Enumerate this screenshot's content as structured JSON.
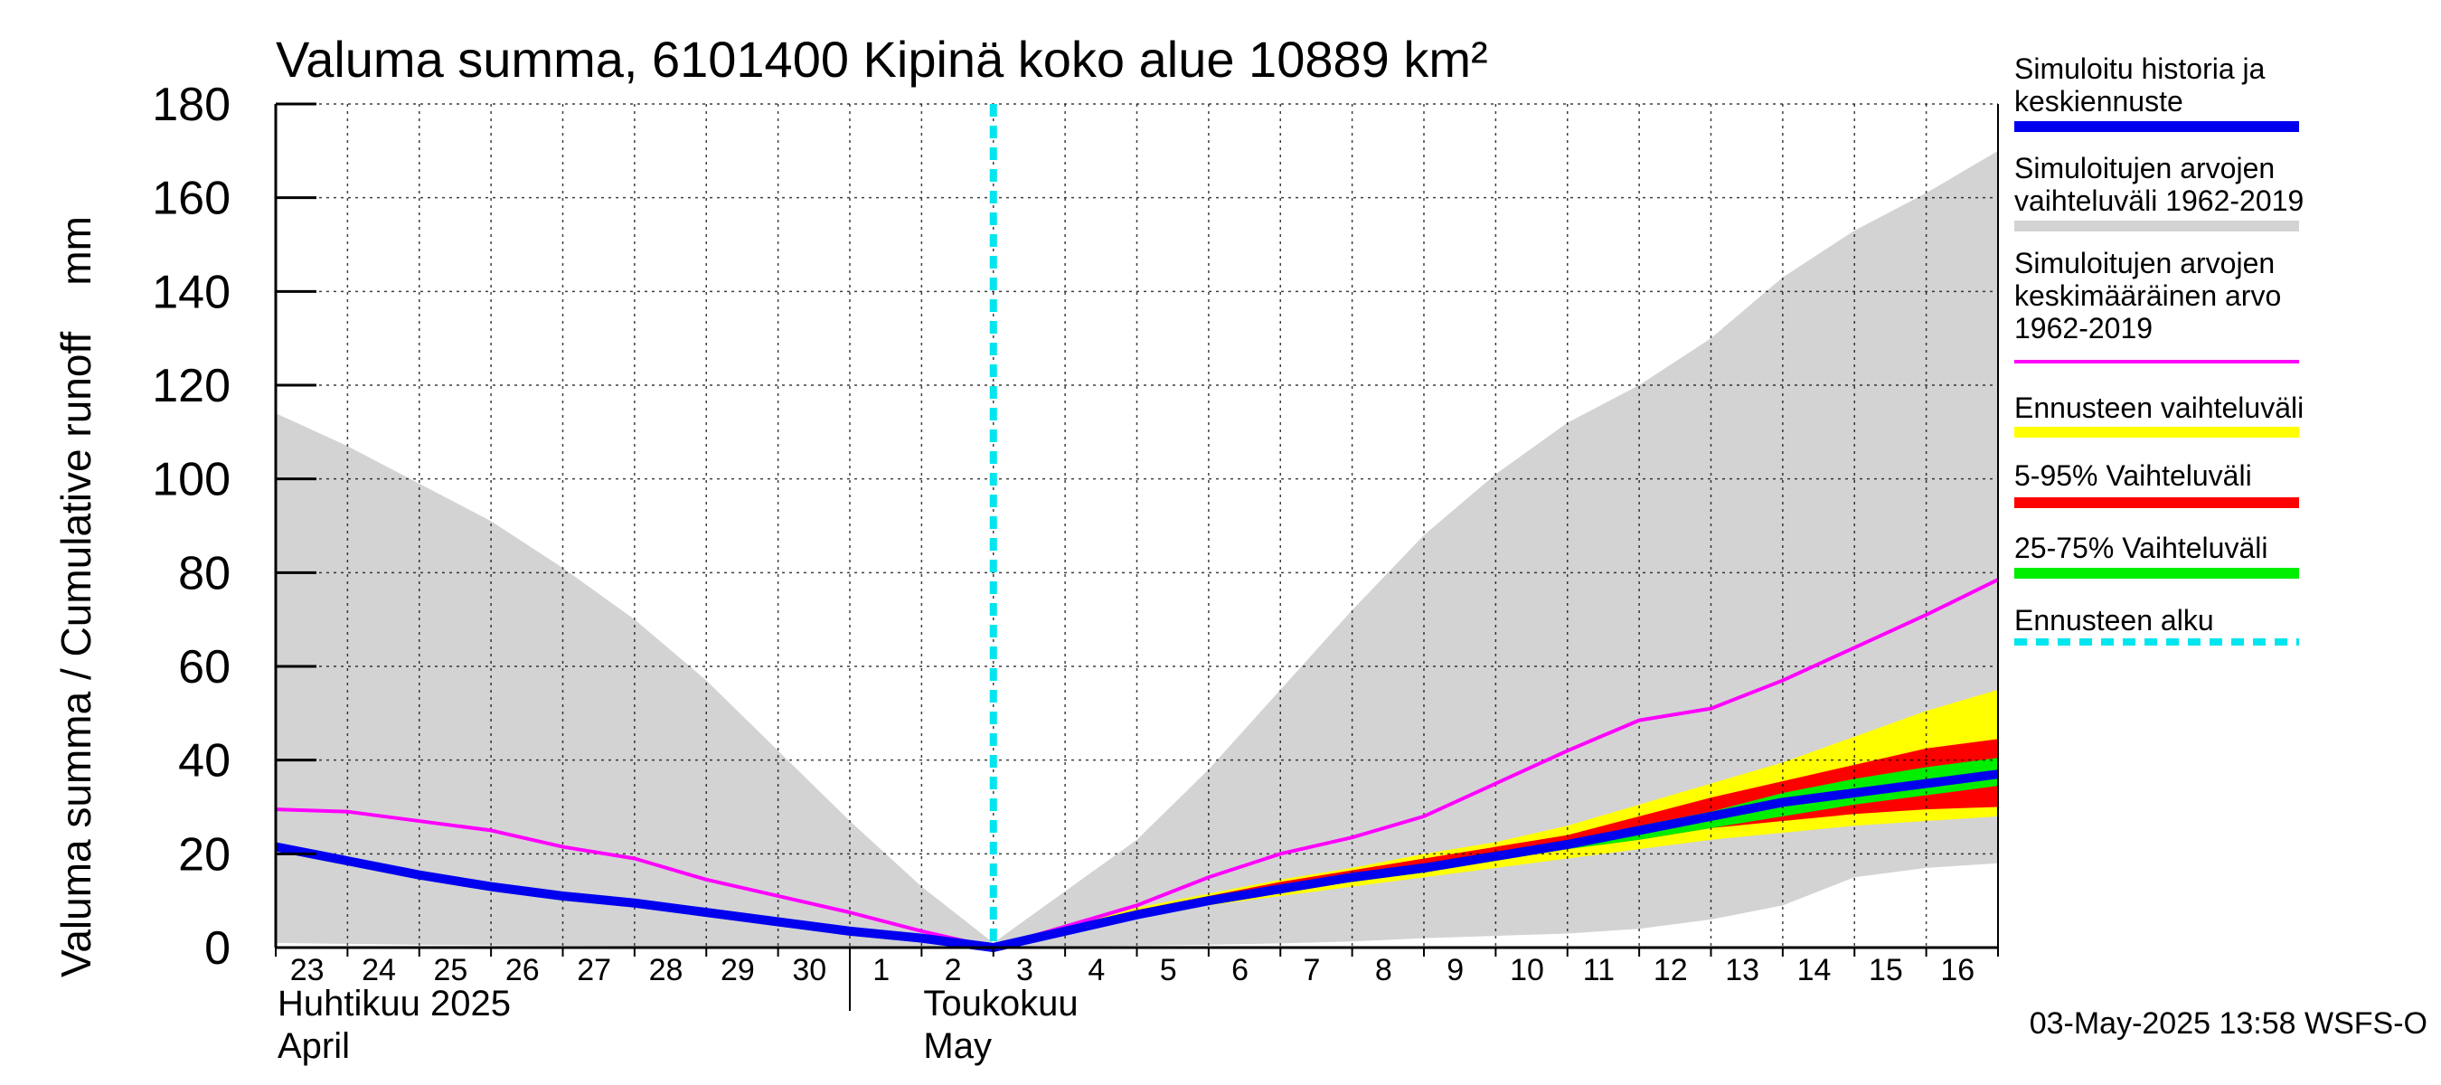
{
  "chart_data": {
    "type": "area",
    "title": "Valuma summa, 6101400 Kipinä koko alue 10889 km²",
    "ylabel": "Valuma summa / Cumulative runoff    mm",
    "ylim": [
      0,
      180
    ],
    "yticks": [
      0,
      20,
      40,
      60,
      80,
      100,
      120,
      140,
      160,
      180
    ],
    "x_day_labels": [
      "23",
      "24",
      "25",
      "26",
      "27",
      "28",
      "29",
      "30",
      "1",
      "2",
      "3",
      "4",
      "5",
      "6",
      "7",
      "8",
      "9",
      "10",
      "11",
      "12",
      "13",
      "14",
      "15",
      "16"
    ],
    "x_label_offsets": [
      0,
      1,
      2,
      3,
      4,
      5,
      6,
      7,
      8,
      9,
      10,
      11,
      12,
      13,
      14,
      15,
      16,
      17,
      18,
      19,
      20,
      21,
      22,
      23
    ],
    "month_labels": [
      {
        "line1": "Huhtikuu  2025",
        "line2": "April",
        "at": 0
      },
      {
        "line1": "Toukokuu",
        "line2": "May",
        "at": 9
      }
    ],
    "month_divider_at": 8,
    "forecast_start": 10,
    "xlim": [
      0,
      24
    ],
    "grey_band": {
      "x": [
        0,
        1,
        2,
        3,
        4,
        5,
        6,
        7,
        8,
        9,
        10,
        11,
        12,
        13,
        14,
        15,
        16,
        17,
        18,
        19,
        20,
        21,
        22,
        23,
        24
      ],
      "upper": [
        114,
        107,
        99,
        91,
        81,
        70,
        57,
        42,
        27,
        13,
        1,
        12,
        23,
        38,
        55,
        72,
        88,
        101,
        112,
        120,
        130,
        143,
        153,
        161,
        170
      ],
      "lower": [
        1,
        0.8,
        0.6,
        0.5,
        0.4,
        0.3,
        0.2,
        0.2,
        0.1,
        0.1,
        0,
        0.2,
        0.4,
        0.6,
        0.9,
        1.3,
        2,
        2.5,
        3,
        4,
        6,
        9,
        15,
        17,
        18
      ]
    },
    "mean_line": {
      "x": [
        0,
        1,
        2,
        3,
        4,
        5,
        6,
        7,
        8,
        9,
        10,
        11,
        12,
        13,
        14,
        15,
        16,
        17,
        18,
        19,
        20,
        21,
        22,
        23,
        24
      ],
      "y": [
        29.5,
        29,
        27,
        25,
        21.5,
        19,
        14.5,
        11,
        7.5,
        3.5,
        0,
        4.5,
        9,
        15,
        20,
        23.5,
        28,
        35,
        42,
        48.5,
        51,
        57,
        64,
        71,
        78.5
      ]
    },
    "forecast_bands": {
      "x": [
        10,
        11,
        12,
        13,
        14,
        15,
        16,
        17,
        18,
        19,
        20,
        21,
        22,
        23,
        24
      ],
      "yellow_upper": [
        0,
        4.5,
        8.5,
        11.5,
        14.5,
        17,
        20,
        22.5,
        26,
        30.5,
        35,
        39.5,
        45,
        50.5,
        55
      ],
      "yellow_lower": [
        0,
        3.5,
        7,
        9,
        11,
        13,
        15,
        17,
        19,
        21,
        23,
        24.5,
        26,
        27,
        28
      ],
      "red_upper": [
        0,
        4,
        8,
        11,
        14,
        16.5,
        19,
        21.5,
        24,
        28,
        32,
        35.5,
        39,
        42.5,
        44.5
      ],
      "red_lower": [
        0,
        3.5,
        7,
        9.5,
        12,
        14,
        16,
        18.5,
        21,
        23,
        25.5,
        27,
        28.5,
        29.5,
        30
      ],
      "green_upper": [
        0,
        3.8,
        7.5,
        10.5,
        13,
        15.5,
        17.5,
        20,
        22.5,
        26,
        29,
        33,
        36,
        38.5,
        40.5
      ],
      "green_lower": [
        0,
        3.5,
        7,
        9.5,
        12,
        14,
        16,
        18.5,
        21,
        23,
        25.5,
        28,
        30.5,
        32.5,
        34.5
      ]
    },
    "blue_line": {
      "x": [
        0,
        1,
        2,
        3,
        4,
        5,
        6,
        7,
        8,
        9,
        10,
        11,
        12,
        13,
        14,
        15,
        16,
        17,
        18,
        19,
        20,
        21,
        22,
        23,
        24
      ],
      "y": [
        21.5,
        18.5,
        15.5,
        13,
        11,
        9.5,
        7.5,
        5.5,
        3.5,
        2,
        0,
        3.5,
        7,
        10,
        12.5,
        15,
        17,
        19.5,
        22,
        25,
        28,
        31,
        33,
        35,
        37
      ]
    },
    "legend": [
      {
        "label_lines": [
          "Simuloitu historia ja",
          "keskiennuste"
        ],
        "color": "#0000ee",
        "style": "solid"
      },
      {
        "label_lines": [
          "Simuloitujen arvojen",
          "vaihteluväli 1962-2019"
        ],
        "color": "#d3d3d3",
        "style": "solid"
      },
      {
        "label_lines": [
          "Simuloitujen arvojen",
          "keskimääräinen arvo",
          "   1962-2019"
        ],
        "color": "#ff00ff",
        "style": "thin"
      },
      {
        "label_lines": [
          "Ennusteen vaihteluväli"
        ],
        "color": "#ffff00",
        "style": "solid"
      },
      {
        "label_lines": [
          "5-95% Vaihteluväli"
        ],
        "color": "#ff0000",
        "style": "solid"
      },
      {
        "label_lines": [
          "25-75% Vaihteluväli"
        ],
        "color": "#00ee00",
        "style": "solid"
      },
      {
        "label_lines": [
          "Ennusteen alku"
        ],
        "color": "#00e5ee",
        "style": "dashed"
      }
    ],
    "timestamp": "03-May-2025 13:58 WSFS-O"
  }
}
